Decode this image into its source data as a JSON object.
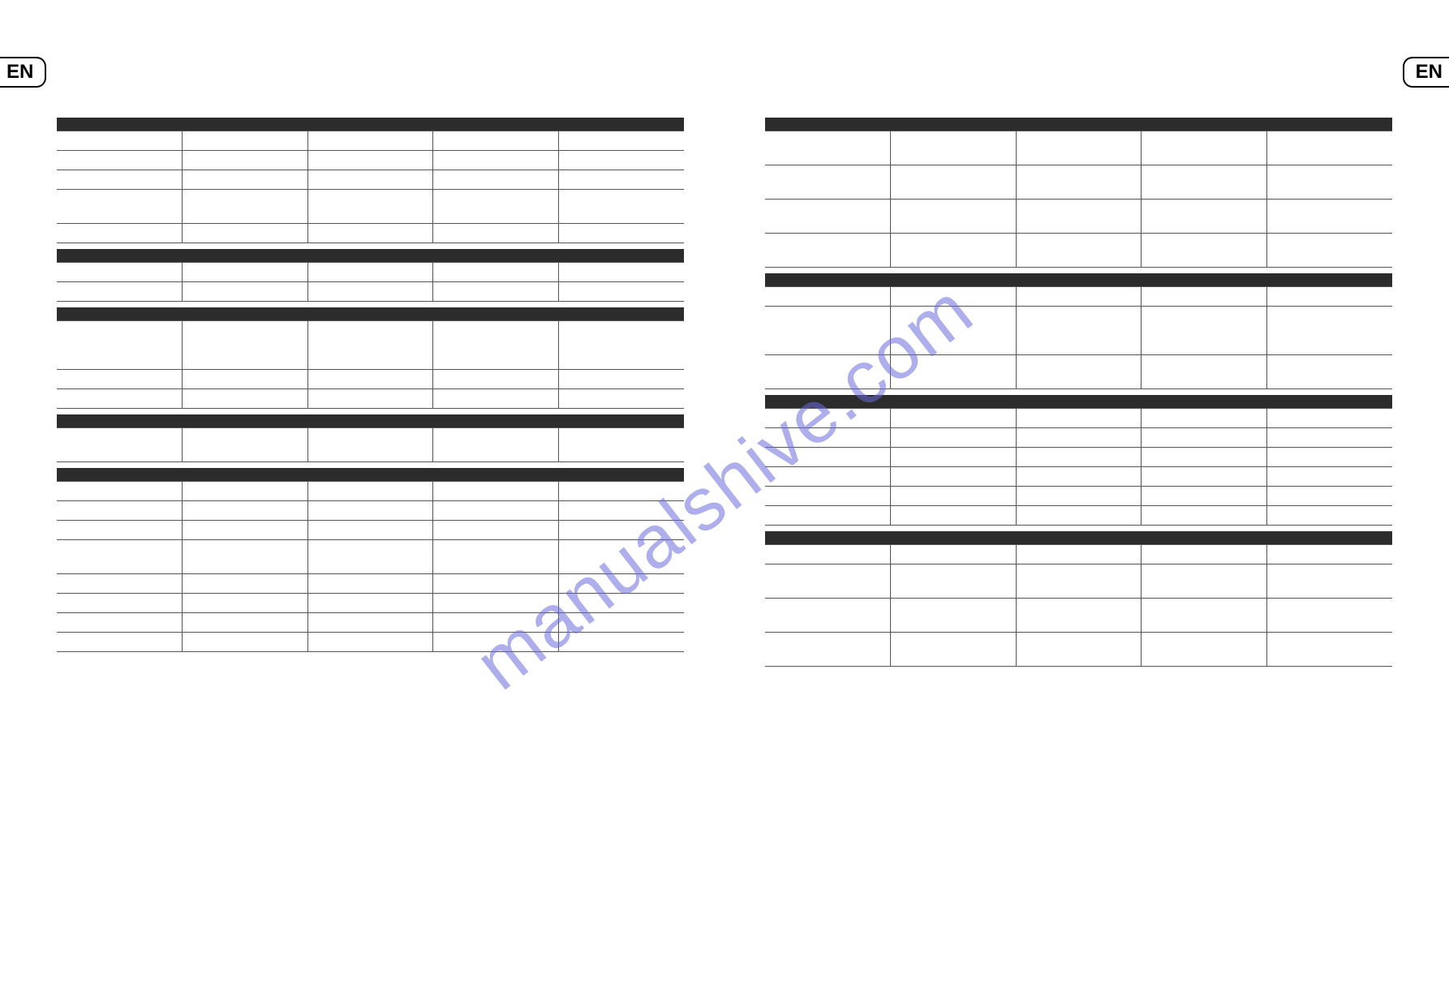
{
  "lang_badge": "EN",
  "watermark": "manualshive.com",
  "colors": {
    "header_bg": "#2c2c2c",
    "grid_line": "#555555",
    "text": "#222222",
    "background": "#ffffff",
    "watermark": "rgba(108,108,220,0.55)"
  },
  "left_page": {
    "columns": 5,
    "sections": [
      {
        "header": true,
        "rows": [
          {
            "heights": "short"
          },
          {
            "heights": "short"
          },
          {
            "heights": "short"
          },
          {
            "heights": "med"
          },
          {
            "heights": "short"
          }
        ]
      },
      {
        "spacer": true
      },
      {
        "header": true,
        "rows": [
          {
            "heights": "short"
          },
          {
            "heights": "short"
          }
        ]
      },
      {
        "spacer": true
      },
      {
        "header": true,
        "rows": [
          {
            "heights": "tall"
          },
          {
            "heights": "short"
          },
          {
            "heights": "short"
          }
        ]
      },
      {
        "spacer": true
      },
      {
        "header": true,
        "rows": [
          {
            "heights": "med"
          }
        ]
      },
      {
        "spacer": true
      },
      {
        "header": true,
        "rows": [
          {
            "heights": "short"
          },
          {
            "heights": "short"
          },
          {
            "heights": "short"
          },
          {
            "heights": "med"
          },
          {
            "heights": "short"
          },
          {
            "heights": "short"
          },
          {
            "heights": "short"
          },
          {
            "heights": "short"
          }
        ]
      }
    ]
  },
  "right_page": {
    "columns": 5,
    "sections": [
      {
        "header": true,
        "rows": [
          {
            "heights": "med"
          },
          {
            "heights": "med"
          },
          {
            "heights": "med"
          },
          {
            "heights": "med"
          }
        ]
      },
      {
        "spacer": true
      },
      {
        "header": true,
        "rows": [
          {
            "heights": "short"
          },
          {
            "heights": "tall"
          },
          {
            "heights": "med"
          }
        ]
      },
      {
        "spacer": true
      },
      {
        "header": true,
        "rows": [
          {
            "heights": "short"
          },
          {
            "heights": "short"
          },
          {
            "heights": "short"
          },
          {
            "heights": "short"
          },
          {
            "heights": "short"
          },
          {
            "heights": "short"
          }
        ]
      },
      {
        "spacer": true
      },
      {
        "header": true,
        "rows": [
          {
            "heights": "short"
          },
          {
            "heights": "med"
          },
          {
            "heights": "med"
          },
          {
            "heights": "med"
          }
        ]
      }
    ]
  }
}
